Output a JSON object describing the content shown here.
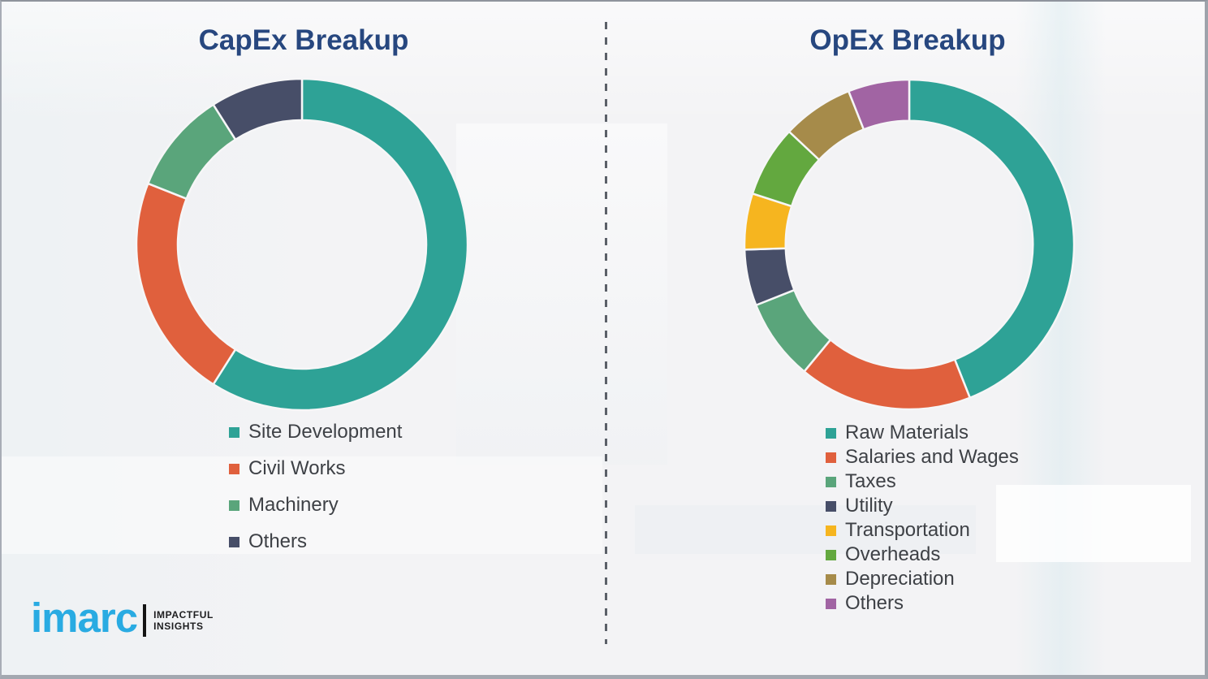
{
  "chart_data": [
    {
      "type": "pie",
      "subtype": "donut",
      "title": "CapEx Breakup",
      "legend_position": "below-left",
      "start_angle_deg": 0,
      "direction": "clockwise",
      "segments": [
        {
          "label": "Site Development",
          "value": 59,
          "color": "#2ea296"
        },
        {
          "label": "Civil Works",
          "value": 22,
          "color": "#e0603d"
        },
        {
          "label": "Machinery",
          "value": 10,
          "color": "#5aa57b"
        },
        {
          "label": "Others",
          "value": 9,
          "color": "#474e68"
        }
      ]
    },
    {
      "type": "pie",
      "subtype": "donut",
      "title": "OpEx Breakup",
      "legend_position": "below-left",
      "start_angle_deg": 0,
      "direction": "clockwise",
      "segments": [
        {
          "label": "Raw Materials",
          "value": 44,
          "color": "#2ea296"
        },
        {
          "label": "Salaries and Wages",
          "value": 17,
          "color": "#e0603d"
        },
        {
          "label": "Taxes",
          "value": 8,
          "color": "#5aa57b"
        },
        {
          "label": "Utility",
          "value": 5.5,
          "color": "#474e68"
        },
        {
          "label": "Transportation",
          "value": 5.5,
          "color": "#f6b51f"
        },
        {
          "label": "Overheads",
          "value": 7,
          "color": "#63a83f"
        },
        {
          "label": "Depreciation",
          "value": 7,
          "color": "#a68b4a"
        },
        {
          "label": "Others",
          "value": 6,
          "color": "#a164a3"
        }
      ]
    }
  ],
  "styles": {
    "title_color": "#27477f",
    "legend_text_color": "#3e4146",
    "background_color": "#f3f3f5",
    "segment_gap_color": "#f6f6f7"
  },
  "logo": {
    "brand": "imarc",
    "brand_color": "#29abe2",
    "tagline_line1": "IMPACTFUL",
    "tagline_line2": "INSIGHTS"
  }
}
